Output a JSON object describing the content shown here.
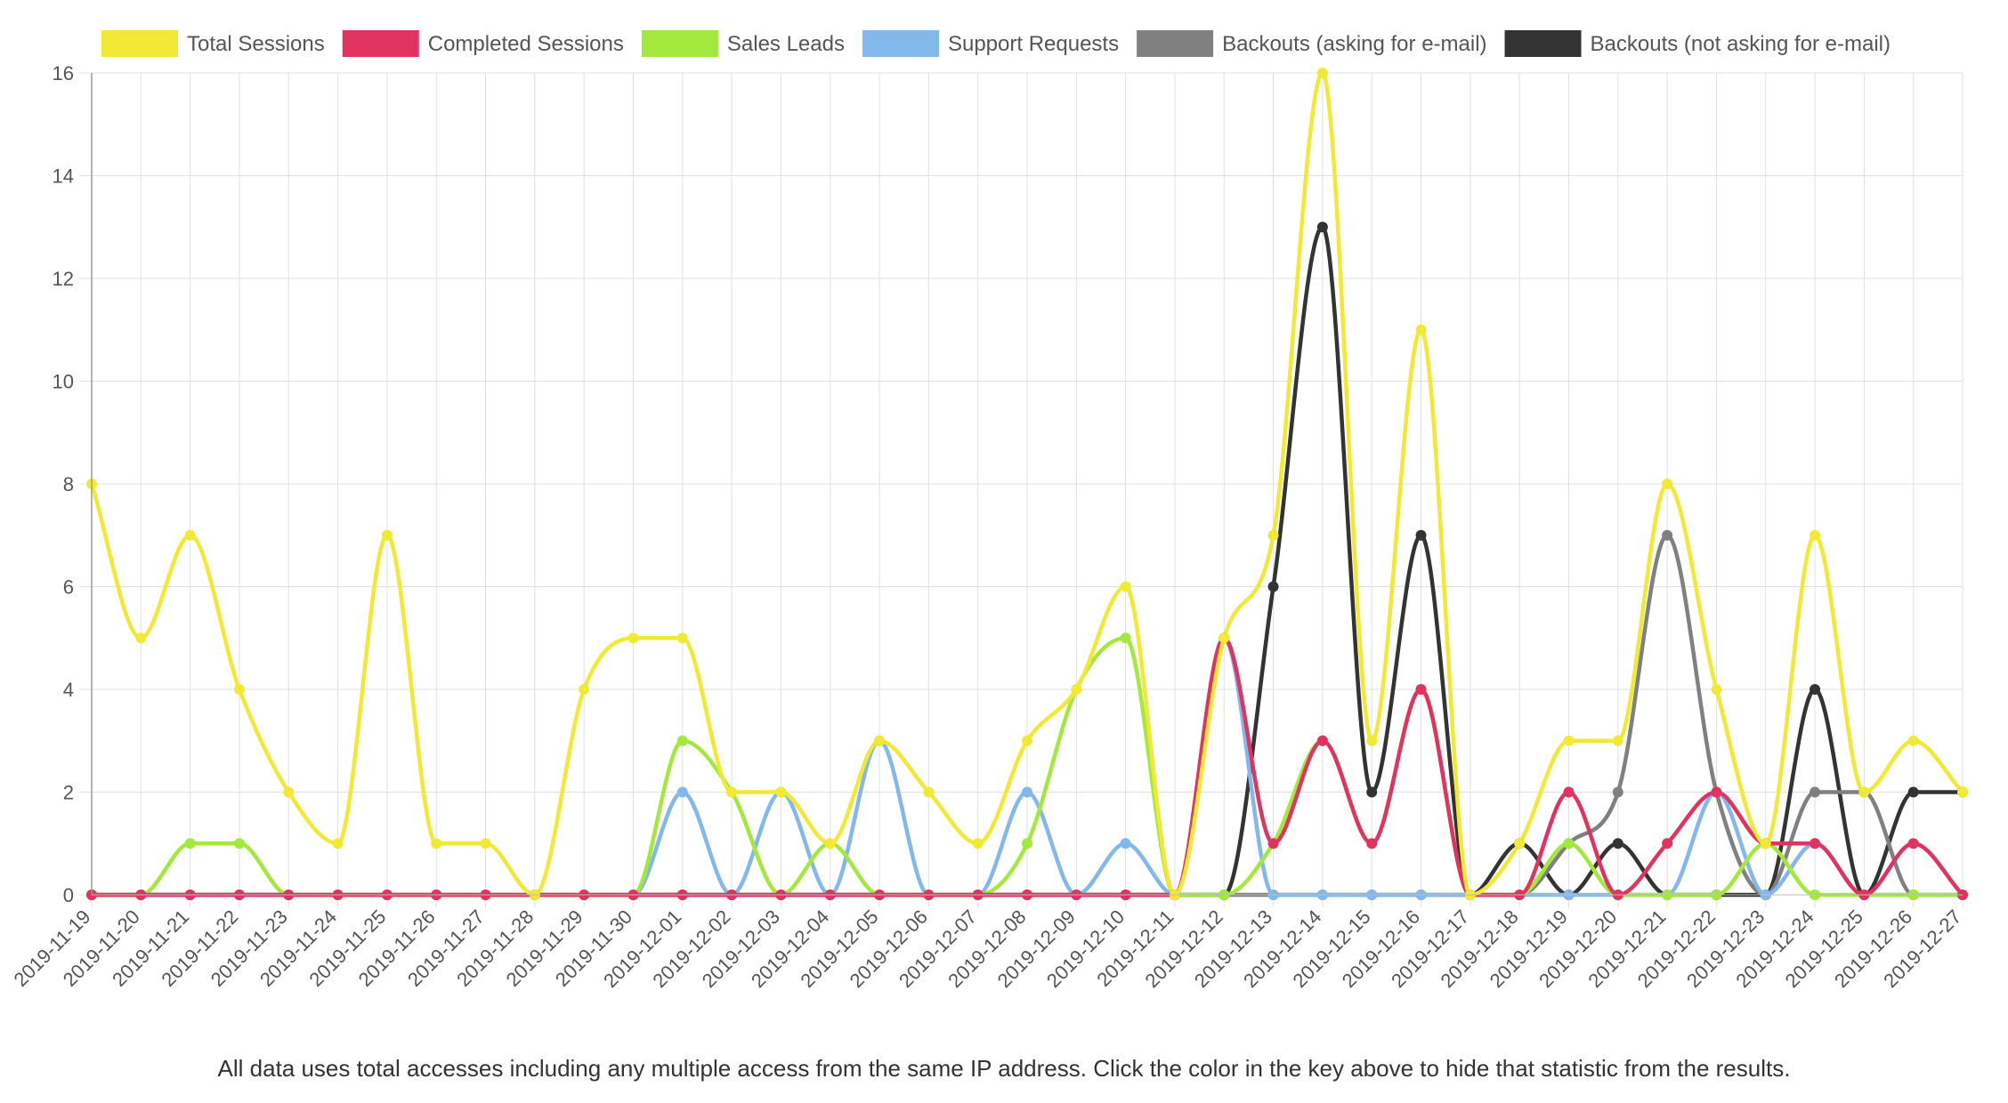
{
  "chart_data": {
    "type": "line",
    "x": [
      "2019-11-19",
      "2019-11-20",
      "2019-11-21",
      "2019-11-22",
      "2019-11-23",
      "2019-11-24",
      "2019-11-25",
      "2019-11-26",
      "2019-11-27",
      "2019-11-28",
      "2019-11-29",
      "2019-11-30",
      "2019-12-01",
      "2019-12-02",
      "2019-12-03",
      "2019-12-04",
      "2019-12-05",
      "2019-12-06",
      "2019-12-07",
      "2019-12-08",
      "2019-12-09",
      "2019-12-10",
      "2019-12-11",
      "2019-12-12",
      "2019-12-13",
      "2019-12-14",
      "2019-12-15",
      "2019-12-16",
      "2019-12-17",
      "2019-12-18",
      "2019-12-19",
      "2019-12-20",
      "2019-12-21",
      "2019-12-22",
      "2019-12-23",
      "2019-12-24",
      "2019-12-25",
      "2019-12-26",
      "2019-12-27"
    ],
    "ylim": [
      0,
      16
    ],
    "yticks": [
      0,
      2,
      4,
      6,
      8,
      10,
      12,
      14,
      16
    ],
    "grid": true,
    "legend_position": "top",
    "series": [
      {
        "name": "Backouts (not asking for e-mail)",
        "color": "#333333",
        "values": [
          0,
          0,
          0,
          0,
          0,
          0,
          0,
          0,
          0,
          0,
          0,
          0,
          0,
          0,
          0,
          0,
          0,
          0,
          0,
          0,
          0,
          0,
          0,
          0,
          6,
          13,
          2,
          7,
          0,
          1,
          0,
          1,
          0,
          0,
          0,
          4,
          0,
          2,
          2
        ]
      },
      {
        "name": "Backouts (asking for e-mail)",
        "color": "#808080",
        "values": [
          0,
          0,
          0,
          0,
          0,
          0,
          0,
          0,
          0,
          0,
          0,
          0,
          0,
          0,
          0,
          0,
          0,
          0,
          0,
          0,
          0,
          0,
          0,
          0,
          0,
          0,
          0,
          0,
          0,
          0,
          1,
          2,
          7,
          2,
          0,
          2,
          2,
          0,
          0
        ]
      },
      {
        "name": "Support Requests",
        "color": "#82b8ec",
        "values": [
          0,
          0,
          0,
          0,
          0,
          0,
          0,
          0,
          0,
          0,
          0,
          0,
          2,
          0,
          2,
          0,
          3,
          0,
          0,
          2,
          0,
          1,
          0,
          5,
          0,
          0,
          0,
          0,
          0,
          0,
          0,
          0,
          0,
          2,
          0,
          1,
          0,
          0,
          0
        ]
      },
      {
        "name": "Sales Leads",
        "color": "#a3e83c",
        "values": [
          0,
          0,
          1,
          1,
          0,
          0,
          0,
          0,
          0,
          0,
          0,
          0,
          3,
          2,
          0,
          1,
          0,
          0,
          0,
          1,
          4,
          5,
          0,
          0,
          1,
          3,
          1,
          4,
          0,
          0,
          1,
          0,
          0,
          0,
          1,
          0,
          0,
          0,
          0
        ]
      },
      {
        "name": "Completed Sessions",
        "color": "#e03360",
        "values": [
          0,
          0,
          0,
          0,
          0,
          0,
          0,
          0,
          0,
          0,
          0,
          0,
          0,
          0,
          0,
          0,
          0,
          0,
          0,
          0,
          0,
          0,
          0,
          5,
          1,
          3,
          1,
          4,
          0,
          0,
          2,
          0,
          1,
          2,
          1,
          1,
          0,
          1,
          0
        ]
      },
      {
        "name": "Total Sessions",
        "color": "#f2e934",
        "values": [
          8,
          5,
          7,
          4,
          2,
          1,
          7,
          1,
          1,
          0,
          4,
          5,
          5,
          2,
          2,
          1,
          3,
          2,
          1,
          3,
          4,
          6,
          0,
          5,
          7,
          16,
          3,
          11,
          0,
          1,
          3,
          3,
          8,
          4,
          1,
          7,
          2,
          3,
          2
        ]
      }
    ],
    "legend_order": [
      "Total Sessions",
      "Completed Sessions",
      "Sales Leads",
      "Support Requests",
      "Backouts (asking for e-mail)",
      "Backouts (not asking for e-mail)"
    ]
  },
  "footnote": "All data uses total accesses including any multiple access from the same IP address. Click the color in the key above to hide that statistic from the results."
}
